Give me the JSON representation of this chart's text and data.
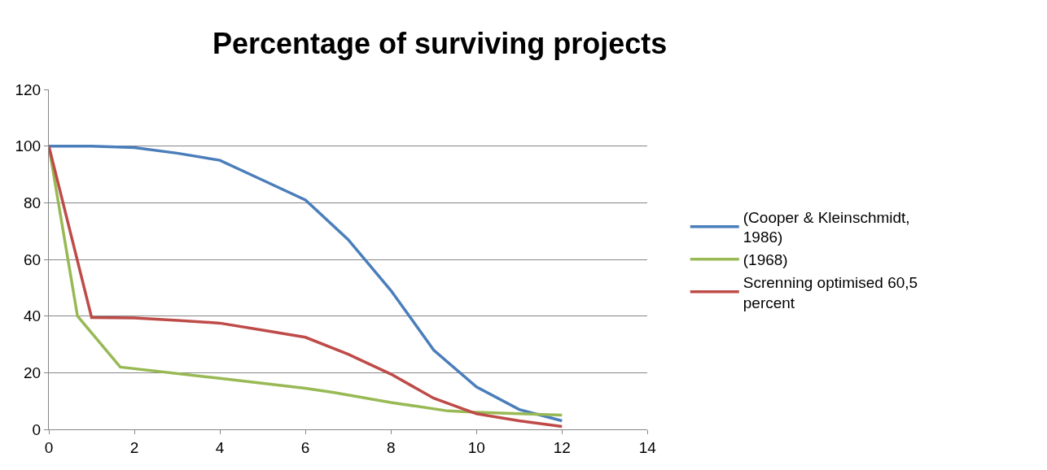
{
  "chart_data": {
    "type": "line",
    "title": "Percentage of surviving projects",
    "xlim": [
      0,
      14
    ],
    "xticks": [
      0,
      2,
      4,
      6,
      8,
      10,
      12,
      14
    ],
    "ylim": [
      0,
      120
    ],
    "yticks": [
      0,
      20,
      40,
      60,
      80,
      100,
      120
    ],
    "grid": "y",
    "legend": "right",
    "marker": "none",
    "line_style": "solid",
    "series": [
      {
        "name": "(Cooper & Kleinschmidt, 1986)",
        "color": "#4a7ebb",
        "x": [
          0,
          1,
          2,
          3,
          4,
          5,
          6,
          7,
          8,
          9,
          10,
          11,
          12
        ],
        "values": [
          100,
          100,
          99.5,
          97.5,
          95,
          88,
          81,
          67,
          49,
          28,
          15,
          7,
          3
        ]
      },
      {
        "name": "(1968)",
        "color": "#98b954",
        "x": [
          0,
          0.67,
          1.67,
          4,
          6,
          6.67,
          8,
          9.33,
          10,
          12
        ],
        "values": [
          100,
          40,
          22,
          18,
          14.5,
          13,
          9.5,
          6.5,
          6,
          5
        ]
      },
      {
        "name": "Screnning optimised 60,5 percent",
        "color": "#be4b48",
        "x": [
          0,
          1,
          2,
          3,
          4,
          5,
          6,
          7,
          8,
          9,
          10,
          11,
          12
        ],
        "values": [
          100,
          39.5,
          39.3,
          38.5,
          37.5,
          35,
          32.5,
          26.5,
          19.5,
          11,
          5.5,
          3,
          1
        ]
      }
    ]
  }
}
